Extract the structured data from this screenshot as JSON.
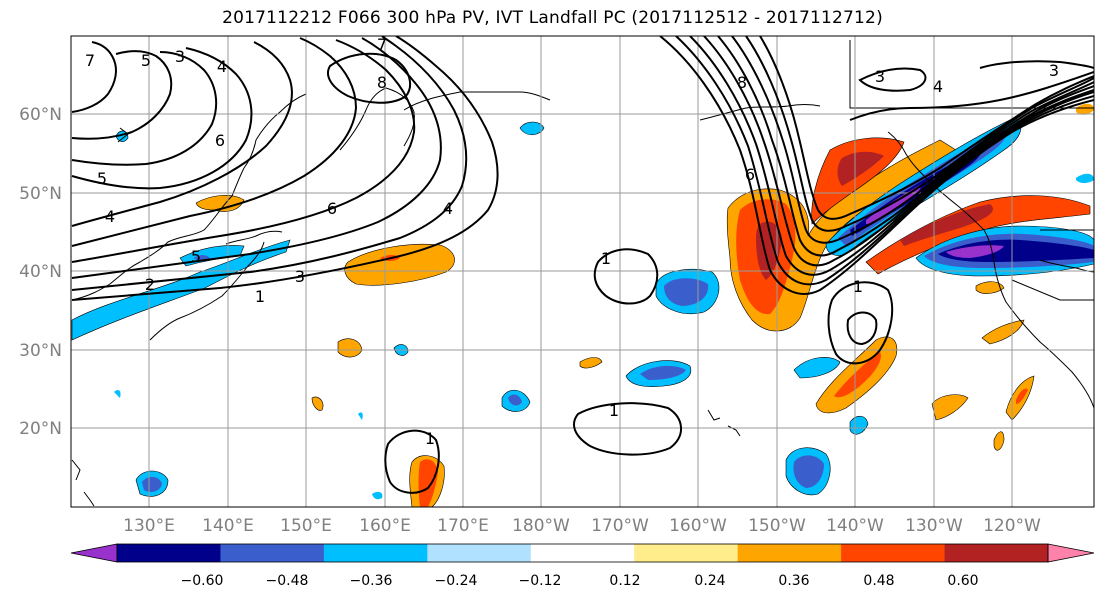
{
  "figure": {
    "title": "2017112212 F066 300 hPa PV, IVT Landfall PC (2017112512 - 2017112712)"
  },
  "map": {
    "lat_labels": [
      "60°N",
      "50°N",
      "40°N",
      "30°N",
      "20°N"
    ],
    "lon_labels": [
      "130°E",
      "140°E",
      "150°E",
      "160°E",
      "170°E",
      "180°W",
      "170°W",
      "160°W",
      "150°W",
      "140°W",
      "130°W",
      "120°W"
    ],
    "pv_contour_labels": [
      "7",
      "5",
      "3",
      "4",
      "6",
      "5",
      "4",
      "8",
      "7",
      "6",
      "4",
      "5",
      "2",
      "3",
      "1",
      "1",
      "8",
      "6",
      "1",
      "3",
      "4",
      "3",
      "1",
      "1"
    ]
  },
  "colorbar": {
    "ticks": [
      "−0.60",
      "−0.48",
      "−0.36",
      "−0.24",
      "−0.12",
      "0.12",
      "0.24",
      "0.36",
      "0.48",
      "0.60"
    ],
    "colors": [
      "#9932cc",
      "#00008b",
      "#3a5fcd",
      "#00bfff",
      "#b0e2ff",
      "#ffffff",
      "#ffec8b",
      "#ffa500",
      "#ff4500",
      "#b22222",
      "#ff82ab"
    ]
  }
}
